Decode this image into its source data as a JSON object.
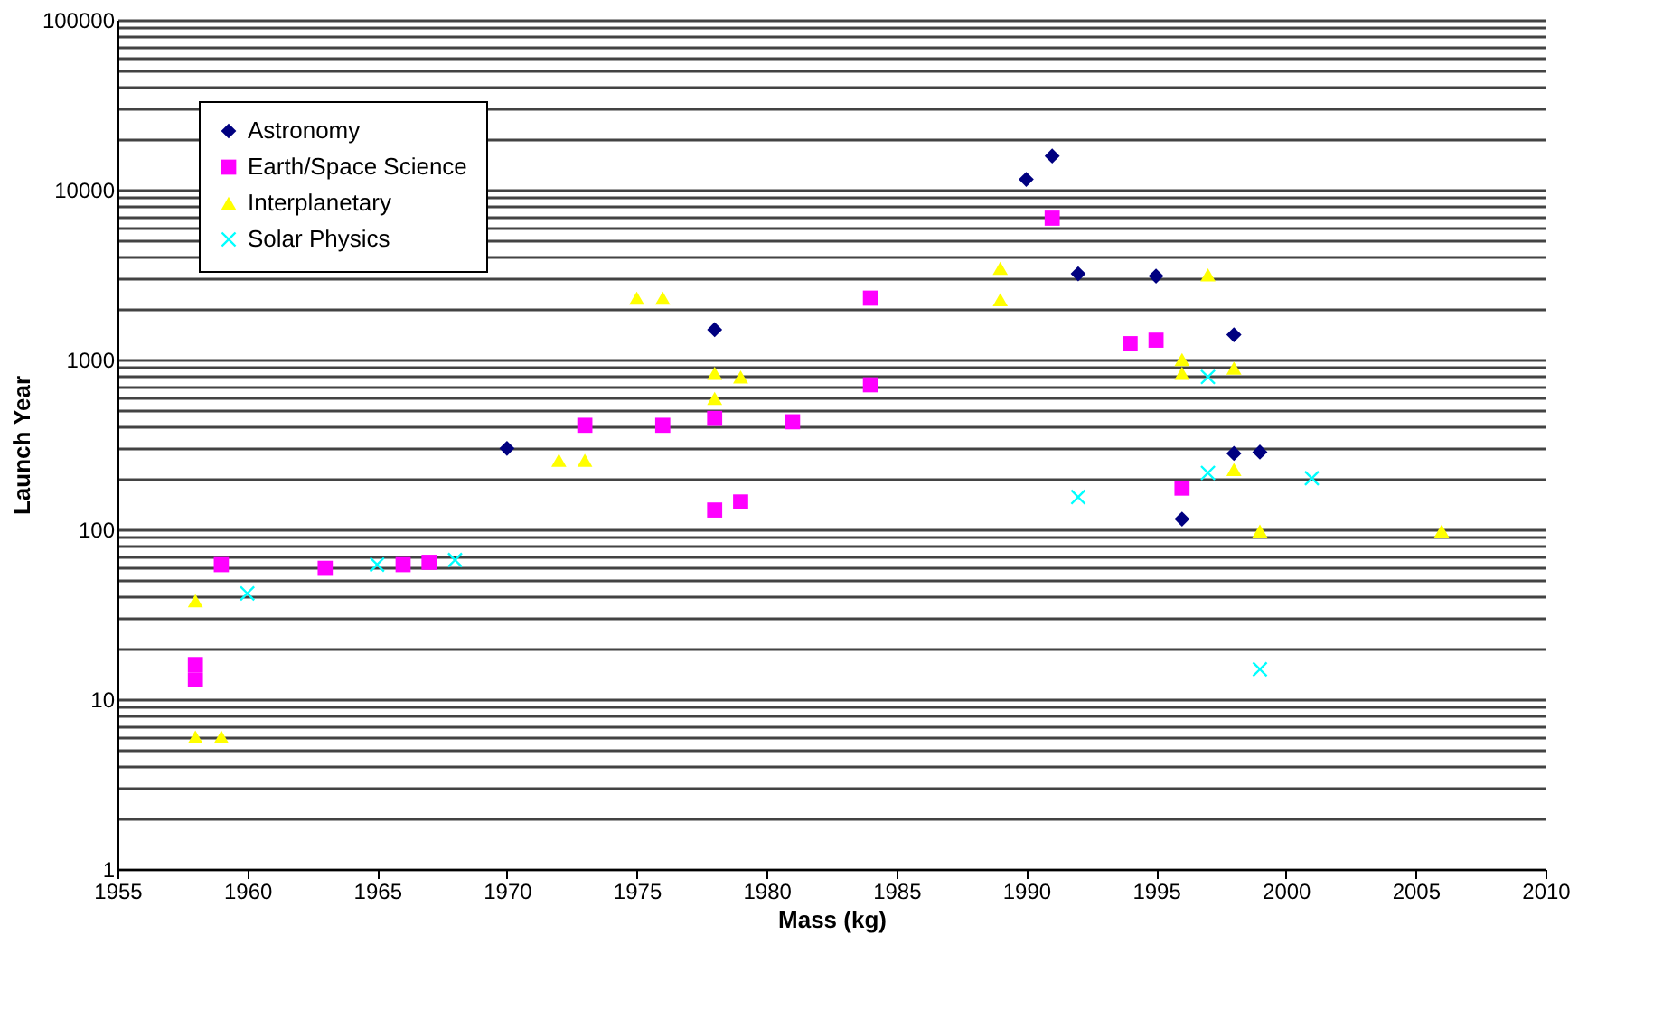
{
  "chart_data": {
    "type": "scatter",
    "xlabel": "Mass (kg)",
    "ylabel": "Launch Year",
    "log": "y",
    "grid": "y",
    "legend": "top left",
    "xlim": [
      1955,
      2010
    ],
    "xticks": [
      1955,
      1960,
      1965,
      1970,
      1975,
      1980,
      1985,
      1990,
      1995,
      2000,
      2005,
      2010
    ],
    "ylim": [
      1,
      100000
    ],
    "yticks": [
      1,
      {
        "value": 2,
        "label": null
      },
      {
        "value": 3,
        "label": null
      },
      {
        "value": 4,
        "label": null
      },
      {
        "value": 5,
        "label": null
      },
      {
        "value": 6,
        "label": null
      },
      {
        "value": 7,
        "label": null
      },
      {
        "value": 8,
        "label": null
      },
      {
        "value": 9,
        "label": null
      },
      10,
      {
        "value": 20,
        "label": null
      },
      {
        "value": 30,
        "label": null
      },
      {
        "value": 40,
        "label": null
      },
      {
        "value": 50,
        "label": null
      },
      {
        "value": 60,
        "label": null
      },
      {
        "value": 70,
        "label": null
      },
      {
        "value": 80,
        "label": null
      },
      {
        "value": 90,
        "label": null
      },
      100,
      {
        "value": 200,
        "label": null
      },
      {
        "value": 300,
        "label": null
      },
      {
        "value": 400,
        "label": null
      },
      {
        "value": 500,
        "label": null
      },
      {
        "value": 600,
        "label": null
      },
      {
        "value": 700,
        "label": null
      },
      {
        "value": 800,
        "label": null
      },
      {
        "value": 900,
        "label": null
      },
      1000,
      {
        "value": 2000,
        "label": null
      },
      {
        "value": 3000,
        "label": null
      },
      {
        "value": 4000,
        "label": null
      },
      {
        "value": 5000,
        "label": null
      },
      {
        "value": 6000,
        "label": null
      },
      {
        "value": 7000,
        "label": null
      },
      {
        "value": 8000,
        "label": null
      },
      {
        "value": 9000,
        "label": null
      },
      10000,
      {
        "value": 20000,
        "label": null
      },
      {
        "value": 30000,
        "label": null
      },
      {
        "value": 40000,
        "label": null
      },
      {
        "value": 50000,
        "label": null
      },
      {
        "value": 60000,
        "label": null
      },
      {
        "value": 70000,
        "label": null
      },
      {
        "value": 80000,
        "label": null
      },
      {
        "value": 90000,
        "label": null
      },
      100000
    ],
    "series": [
      {
        "name": "Astronomy",
        "color": "#000080",
        "marker": "diamond",
        "x": [
          1970,
          1978,
          1989,
          1990,
          1991,
          1992,
          1995,
          1998,
          1998,
          1999,
          1996
        ],
        "values": [
          300,
          1500,
          null,
          11500,
          15800,
          3200,
          3100,
          1400,
          280,
          285,
          115
        ]
      },
      {
        "name": "Earth/Space Science",
        "color": "#ff00ff",
        "marker": "square",
        "x": [
          1958,
          1958,
          1959,
          1963,
          1966,
          1967,
          1973,
          1976,
          1978,
          1981,
          1978,
          1979,
          1984,
          1984,
          1991,
          1994,
          1995,
          1996
        ],
        "values": [
          16,
          13,
          62,
          59,
          62,
          64,
          410,
          410,
          450,
          430,
          130,
          145,
          2300,
          710,
          6800,
          1240,
          1300,
          175
        ]
      },
      {
        "name": "Interplanetary",
        "color": "#ffff00",
        "marker": "triangle",
        "x": [
          1958,
          1958,
          1959,
          1972,
          1973,
          1975,
          1976,
          1978,
          1978,
          1979,
          1989,
          1989,
          1997,
          1996,
          1996,
          1998,
          1998,
          1999,
          2006
        ],
        "values": [
          38,
          6,
          6,
          255,
          255,
          2300,
          2300,
          830,
          590,
          790,
          3450,
          2250,
          3150,
          1000,
          830,
          890,
          225,
          98,
          98
        ]
      },
      {
        "name": "Solar Physics",
        "color": "#00ffff",
        "marker": "cross",
        "x": [
          1960,
          1965,
          1968,
          1992,
          1997,
          1997,
          2001,
          1999
        ],
        "values": [
          42,
          62,
          66,
          155,
          790,
          215,
          200,
          15
        ]
      }
    ]
  }
}
